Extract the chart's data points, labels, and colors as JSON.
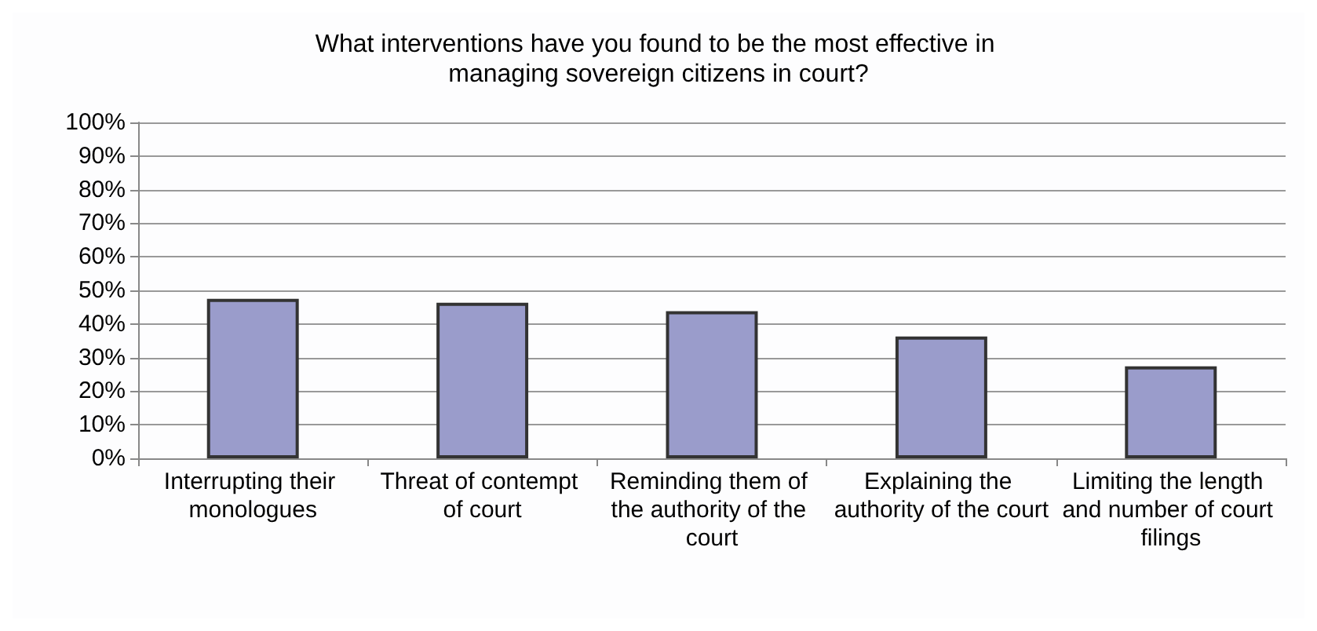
{
  "chart_data": {
    "type": "bar",
    "title": "What interventions have you found to be the most effective in managing sovereign citizens in court?",
    "categories": [
      "Interrupting their monologues",
      "Threat of contempt of court",
      "Reminding them of the authority of the court",
      "Explaining the authority of the court",
      "Limiting the length and number of court filings"
    ],
    "values": [
      47.5,
      46.3,
      43.8,
      36.3,
      27.4
    ],
    "color": "#9a9ccb",
    "ylim": [
      0,
      100
    ],
    "yticks": [
      {
        "value": 0,
        "label": "0%"
      },
      {
        "value": 10,
        "label": "10%"
      },
      {
        "value": 20,
        "label": "20%"
      },
      {
        "value": 30,
        "label": "30%"
      },
      {
        "value": 40,
        "label": "40%"
      },
      {
        "value": 50,
        "label": "50%"
      },
      {
        "value": 60,
        "label": "60%"
      },
      {
        "value": 70,
        "label": "70%"
      },
      {
        "value": 80,
        "label": "80%"
      },
      {
        "value": 90,
        "label": "90%"
      },
      {
        "value": 100,
        "label": "100%"
      }
    ],
    "grid": "y"
  }
}
